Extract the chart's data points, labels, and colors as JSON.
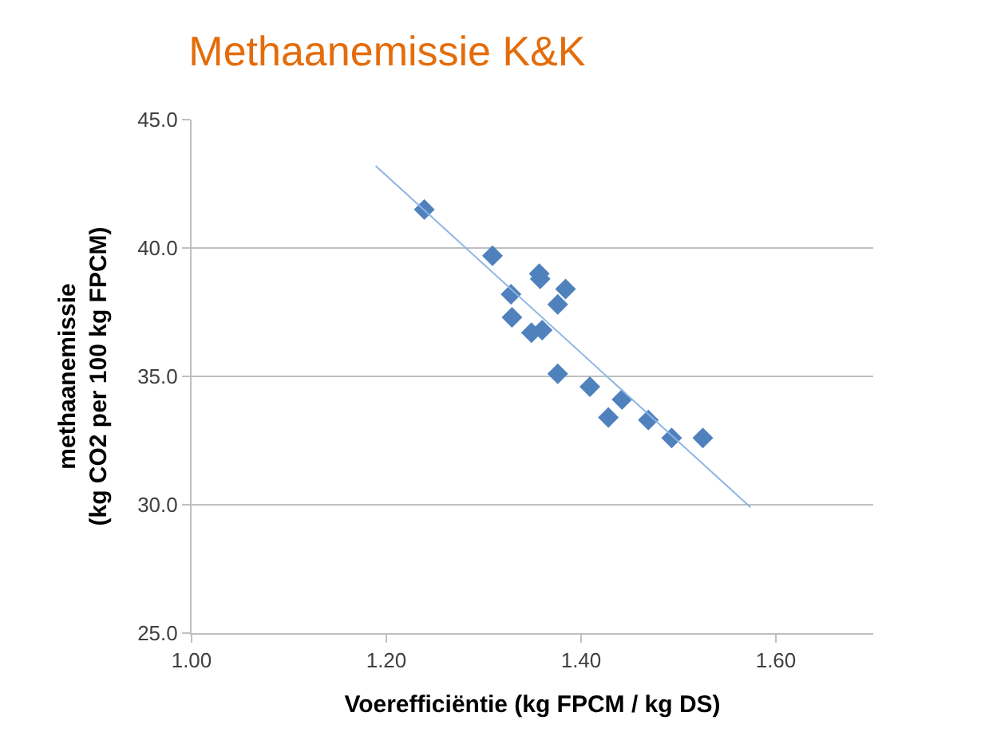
{
  "chart_data": {
    "type": "scatter",
    "title": "Methaanemissie K&K",
    "xlabel": "Voerefficiëntie (kg FPCM / kg DS)",
    "ylabel": "methaanemissie\n(kg CO2 per 100 kg FPCM)",
    "xlim": [
      1.0,
      1.7
    ],
    "xticks": [
      {
        "value": 1.0,
        "label": "1.00"
      },
      {
        "value": 1.2,
        "label": "1.20"
      },
      {
        "value": 1.4,
        "label": "1.40"
      },
      {
        "value": 1.6,
        "label": "1.60"
      }
    ],
    "ylim": [
      25,
      45
    ],
    "yticks": [
      {
        "value": 25,
        "label": "25.0"
      },
      {
        "value": 30,
        "label": "30.0"
      },
      {
        "value": 35,
        "label": "35.0"
      },
      {
        "value": 40,
        "label": "40.0"
      },
      {
        "value": 45,
        "label": "45.0"
      }
    ],
    "grid": "y",
    "marker": "diamond",
    "series": [
      {
        "color": "#4f81bd",
        "x": [
          1.239,
          1.309,
          1.357,
          1.358,
          1.384,
          1.328,
          1.376,
          1.329,
          1.349,
          1.36,
          1.376,
          1.409,
          1.442,
          1.428,
          1.469,
          1.493,
          1.525
        ],
        "values": [
          41.5,
          39.7,
          39.0,
          38.8,
          38.4,
          38.2,
          37.8,
          37.3,
          36.7,
          36.8,
          35.1,
          34.6,
          34.1,
          33.4,
          33.3,
          32.6,
          32.6
        ]
      },
      {
        "type": "line",
        "marker": "none",
        "color": "#8eb4e3",
        "x": [
          1.189,
          1.574
        ],
        "values": [
          43.2,
          29.9
        ]
      }
    ]
  }
}
